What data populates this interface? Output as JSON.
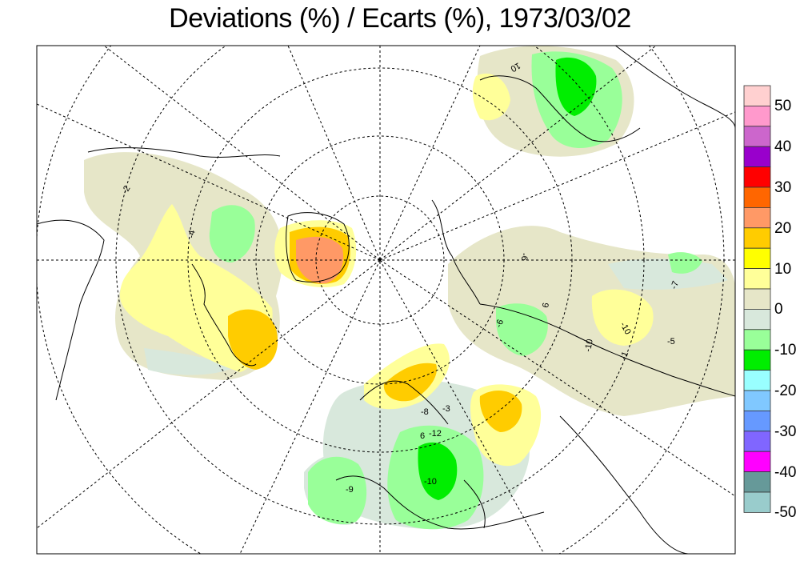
{
  "title": "Deviations (%) / Ecarts (%), 1973/03/02",
  "legend": {
    "colors": [
      "#ffd0d0",
      "#ff99cc",
      "#cc66cc",
      "#9900cc",
      "#ff0000",
      "#ff6600",
      "#ff9966",
      "#ffcc00",
      "#ffff00",
      "#ffff99",
      "#e6e6c8",
      "#d8e8dc",
      "#99ff99",
      "#00ee00",
      "#99ffff",
      "#80c8ff",
      "#6699ff",
      "#8066ff",
      "#ff00ff",
      "#669999",
      "#99cccc"
    ],
    "tick_labels": [
      "50",
      "40",
      "30",
      "20",
      "10",
      "0",
      "-10",
      "-20",
      "-30",
      "-40",
      "-50"
    ]
  },
  "contour_labels": [
    "-2",
    "-4",
    "10",
    "-6",
    "-7",
    "-6",
    "-10",
    "-1",
    "-5",
    "-8",
    "-3",
    "6",
    "-12",
    "-10",
    "-9",
    "6",
    "-10"
  ]
}
